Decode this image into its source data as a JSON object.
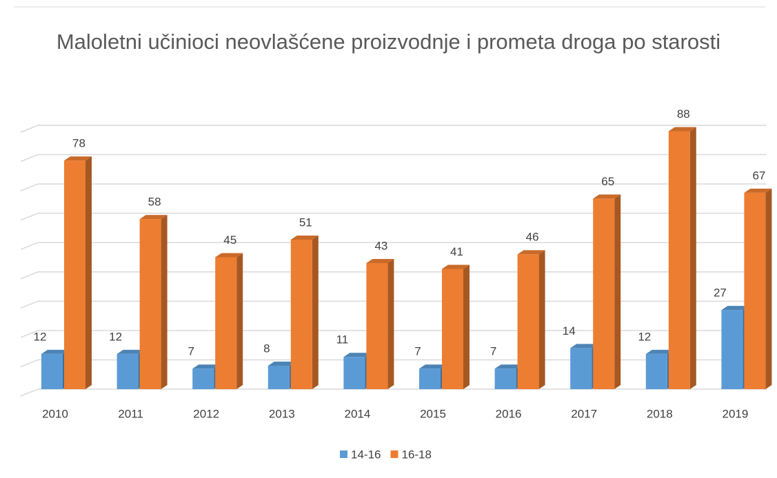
{
  "chart_data": {
    "type": "bar3d",
    "title": "Maloletni učinioci neovlašćene proizvodnje i prometa droga po starosti",
    "categories": [
      "2010",
      "2011",
      "2012",
      "2013",
      "2014",
      "2015",
      "2016",
      "2017",
      "2018",
      "2019"
    ],
    "series": [
      {
        "name": "14-16",
        "color": "#5b9bd5",
        "values": [
          12,
          12,
          7,
          8,
          11,
          7,
          7,
          14,
          12,
          27
        ]
      },
      {
        "name": "16-18",
        "color": "#ed7d31",
        "values": [
          78,
          58,
          45,
          51,
          43,
          41,
          46,
          65,
          88,
          67
        ]
      }
    ],
    "ylim": [
      0,
      90
    ],
    "yticks": [
      0,
      10,
      20,
      30,
      40,
      50,
      60,
      70,
      80,
      90
    ],
    "grid": true,
    "legend": "bottom"
  }
}
